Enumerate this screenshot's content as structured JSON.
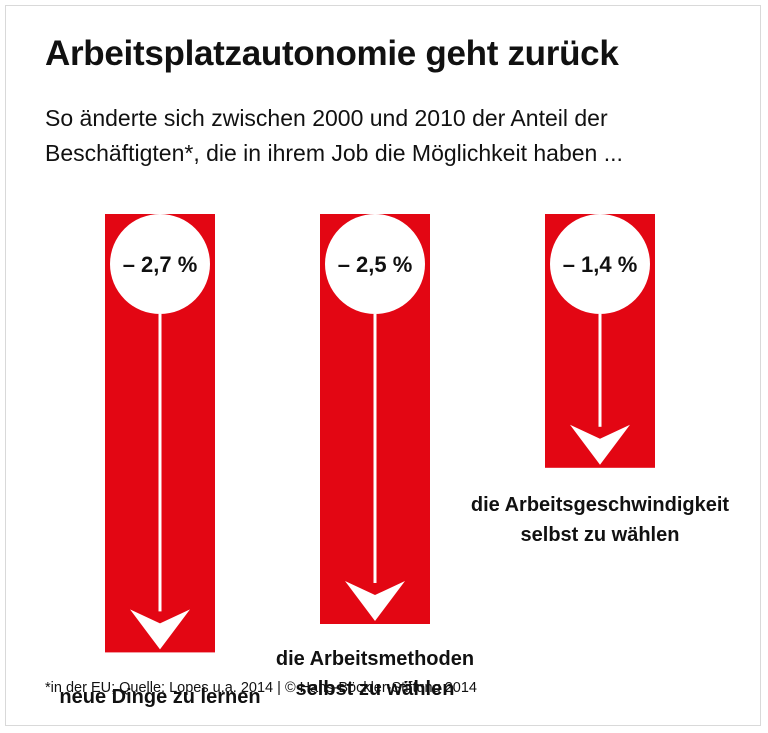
{
  "header": {
    "title": "Arbeitsplatzautonomie geht zurück",
    "subtitle_line1": "So änderte sich zwischen 2000 und 2010 der Anteil der",
    "subtitle_line2": "Beschäftigten*, die in ihrem Job die Möglichkeit haben ..."
  },
  "chart_data": {
    "type": "bar",
    "title": "Arbeitsplatzautonomie geht zurück",
    "categories": [
      [
        "neue Dinge zu lernen"
      ],
      [
        "die Arbeitsmethoden",
        "selbst zu wählen"
      ],
      [
        "die Arbeitsgeschwindigkeit",
        "selbst zu wählen"
      ]
    ],
    "values": [
      -2.7,
      -2.5,
      -1.4
    ],
    "value_labels": [
      "– 2,7 %",
      "– 2,5 %",
      "– 1,4 %"
    ],
    "unit": "%",
    "orientation": "downward",
    "colors": {
      "bar": "#e30613",
      "circle": "#ffffff",
      "arrow": "#ffffff"
    }
  },
  "footer": {
    "note": "*in der EU; Quelle: Lopes u.a. 2014 | © Hans-Böckler-Stiftung 2014"
  }
}
